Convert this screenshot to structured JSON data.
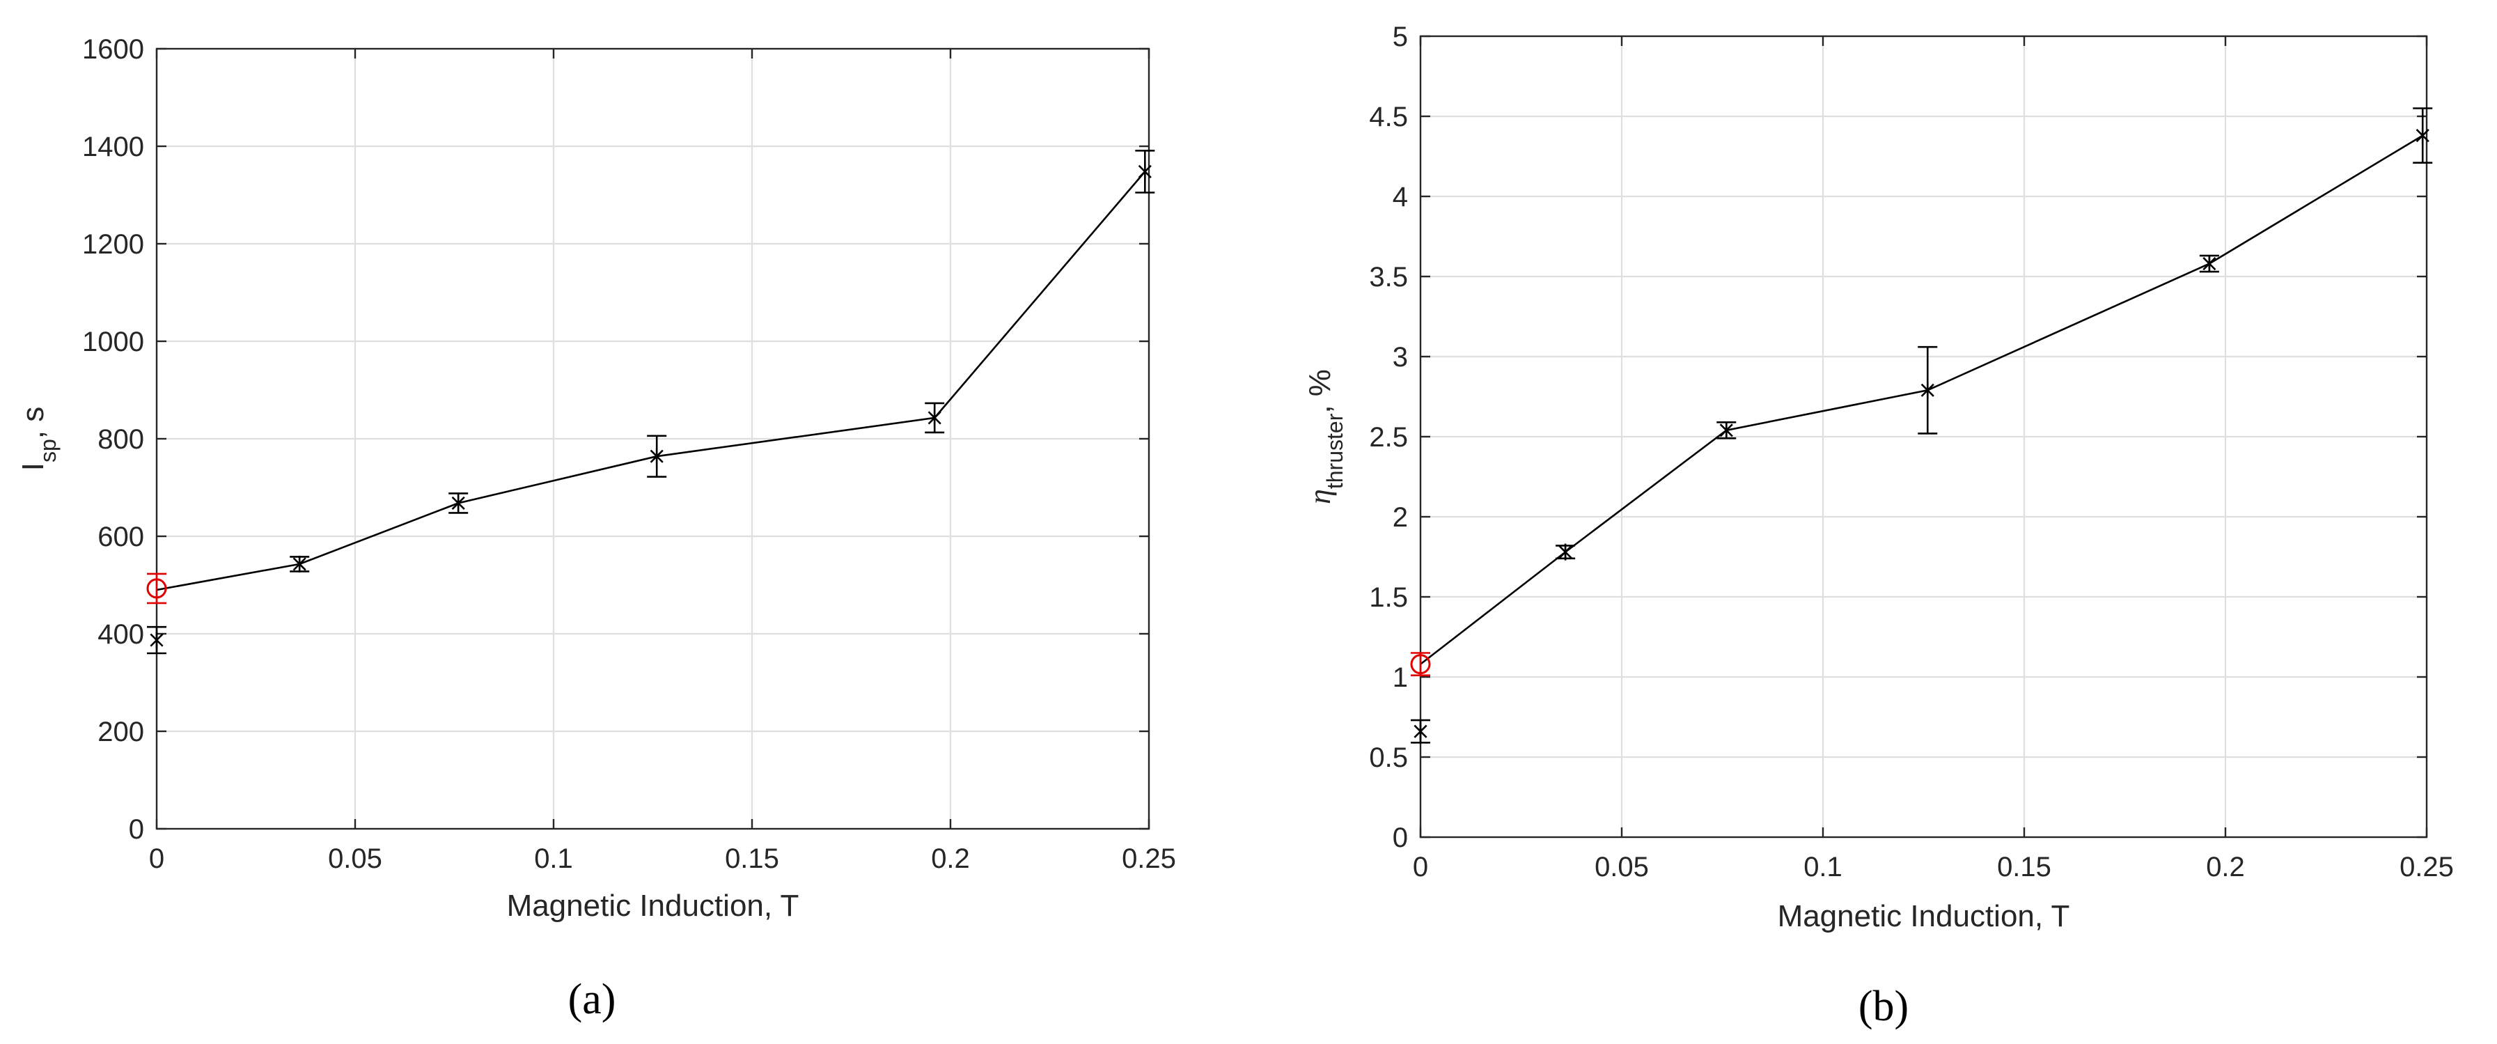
{
  "chart_data": [
    {
      "type": "line",
      "panel_label": "(a)",
      "xlabel": "Magnetic Induction, T",
      "ylabel": "I",
      "ylabel_sub": "sp",
      "ylabel_suffix": ", s",
      "xlim": [
        0,
        0.25
      ],
      "ylim": [
        0,
        1600
      ],
      "xticks": [
        0,
        0.05,
        0.1,
        0.15,
        0.2,
        0.25
      ],
      "xtick_labels": [
        "0",
        "0.05",
        "0.1",
        "0.15",
        "0.2",
        "0.25"
      ],
      "yticks": [
        0,
        200,
        400,
        600,
        800,
        1000,
        1200,
        1400,
        1600
      ],
      "ytick_labels": [
        "0",
        "200",
        "400",
        "600",
        "800",
        "1000",
        "1200",
        "1400",
        "1600"
      ],
      "grid": true,
      "series": [
        {
          "marker": "star",
          "color": "#000000",
          "connected": true,
          "points": [
            {
              "x": 0,
              "y": 490,
              "err": 0
            },
            {
              "x": 0.036,
              "y": 543,
              "err": 15
            },
            {
              "x": 0.076,
              "y": 668,
              "err": 20
            },
            {
              "x": 0.126,
              "y": 764,
              "err": 42
            },
            {
              "x": 0.196,
              "y": 843,
              "err": 30
            },
            {
              "x": 0.249,
              "y": 1348,
              "err": 43
            }
          ]
        },
        {
          "marker": "star",
          "color": "#000000",
          "connected": false,
          "points": [
            {
              "x": 0,
              "y": 387,
              "err": 27
            }
          ]
        },
        {
          "marker": "circle",
          "color": "#e00000",
          "connected": false,
          "points": [
            {
              "x": 0,
              "y": 493,
              "err": 30
            }
          ]
        }
      ]
    },
    {
      "type": "line",
      "panel_label": "(b)",
      "xlabel": "Magnetic Induction, T",
      "ylabel": "η",
      "ylabel_sub": "thruster",
      "ylabel_suffix": ", %",
      "xlim": [
        0,
        0.25
      ],
      "ylim": [
        0,
        5
      ],
      "xticks": [
        0,
        0.05,
        0.1,
        0.15,
        0.2,
        0.25
      ],
      "xtick_labels": [
        "0",
        "0.05",
        "0.1",
        "0.15",
        "0.2",
        "0.25"
      ],
      "yticks": [
        0,
        0.5,
        1,
        1.5,
        2,
        2.5,
        3,
        3.5,
        4,
        4.5,
        5
      ],
      "ytick_labels": [
        "0",
        "0.5",
        "1",
        "1.5",
        "2",
        "2.5",
        "3",
        "3.5",
        "4",
        "4.5",
        "5"
      ],
      "grid": true,
      "series": [
        {
          "marker": "star",
          "color": "#000000",
          "connected": true,
          "points": [
            {
              "x": 0,
              "y": 1.08,
              "err": 0
            },
            {
              "x": 0.036,
              "y": 1.78,
              "err": 0.04
            },
            {
              "x": 0.076,
              "y": 2.54,
              "err": 0.05
            },
            {
              "x": 0.126,
              "y": 2.79,
              "err": 0.27
            },
            {
              "x": 0.196,
              "y": 3.58,
              "err": 0.05
            },
            {
              "x": 0.249,
              "y": 4.38,
              "err": 0.17
            }
          ]
        },
        {
          "marker": "star",
          "color": "#000000",
          "connected": false,
          "points": [
            {
              "x": 0,
              "y": 0.66,
              "err": 0.07
            }
          ]
        },
        {
          "marker": "circle",
          "color": "#e00000",
          "connected": false,
          "points": [
            {
              "x": 0,
              "y": 1.08,
              "err": 0.07
            }
          ]
        }
      ]
    }
  ]
}
